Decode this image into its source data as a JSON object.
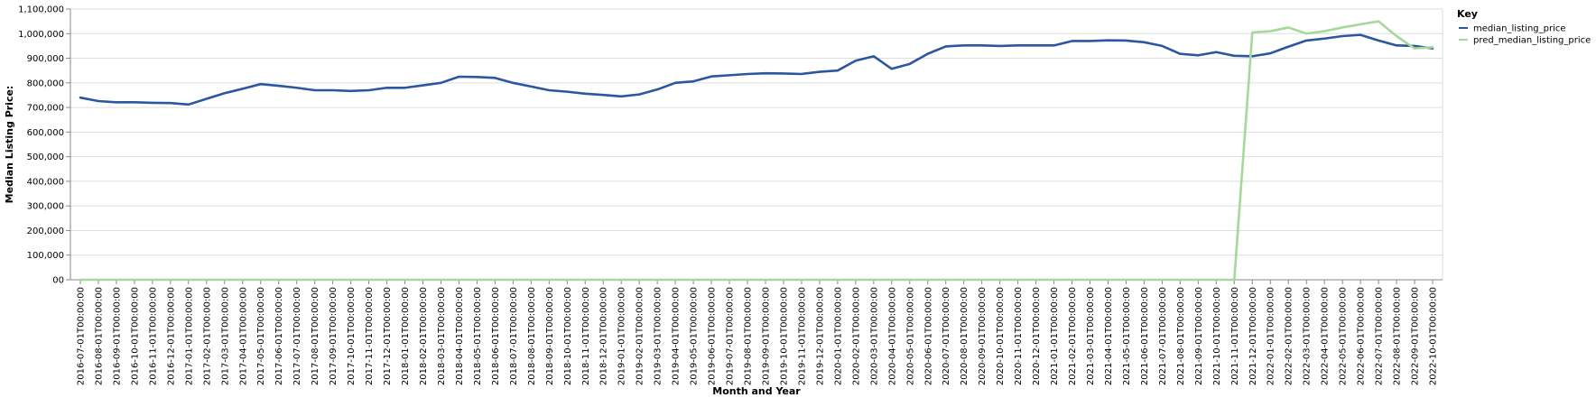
{
  "chart_data": {
    "type": "line",
    "xlabel": "Month and Year",
    "ylabel": "Median Listing Price:",
    "ylim": [
      0,
      1100000
    ],
    "y_ticks": [
      "00",
      "100,000",
      "200,000",
      "300,000",
      "400,000",
      "500,000",
      "600,000",
      "700,000",
      "800,000",
      "900,000",
      "1,000,000",
      "1,100,000"
    ],
    "grid": true,
    "legend_placement": "right",
    "legend_title": "Key",
    "x": [
      "2016-07-01T00:00:00",
      "2016-08-01T00:00:00",
      "2016-09-01T00:00:00",
      "2016-10-01T00:00:00",
      "2016-11-01T00:00:00",
      "2016-12-01T00:00:00",
      "2017-01-01T00:00:00",
      "2017-02-01T00:00:00",
      "2017-03-01T00:00:00",
      "2017-04-01T00:00:00",
      "2017-05-01T00:00:00",
      "2017-06-01T00:00:00",
      "2017-07-01T00:00:00",
      "2017-08-01T00:00:00",
      "2017-09-01T00:00:00",
      "2017-10-01T00:00:00",
      "2017-11-01T00:00:00",
      "2017-12-01T00:00:00",
      "2018-01-01T00:00:00",
      "2018-02-01T00:00:00",
      "2018-03-01T00:00:00",
      "2018-04-01T00:00:00",
      "2018-05-01T00:00:00",
      "2018-06-01T00:00:00",
      "2018-07-01T00:00:00",
      "2018-08-01T00:00:00",
      "2018-09-01T00:00:00",
      "2018-10-01T00:00:00",
      "2018-11-01T00:00:00",
      "2018-12-01T00:00:00",
      "2019-01-01T00:00:00",
      "2019-02-01T00:00:00",
      "2019-03-01T00:00:00",
      "2019-04-01T00:00:00",
      "2019-05-01T00:00:00",
      "2019-06-01T00:00:00",
      "2019-07-01T00:00:00",
      "2019-08-01T00:00:00",
      "2019-09-01T00:00:00",
      "2019-10-01T00:00:00",
      "2019-11-01T00:00:00",
      "2019-12-01T00:00:00",
      "2020-01-01T00:00:00",
      "2020-02-01T00:00:00",
      "2020-03-01T00:00:00",
      "2020-04-01T00:00:00",
      "2020-05-01T00:00:00",
      "2020-06-01T00:00:00",
      "2020-07-01T00:00:00",
      "2020-08-01T00:00:00",
      "2020-09-01T00:00:00",
      "2020-10-01T00:00:00",
      "2020-11-01T00:00:00",
      "2020-12-01T00:00:00",
      "2021-01-01T00:00:00",
      "2021-02-01T00:00:00",
      "2021-03-01T00:00:00",
      "2021-04-01T00:00:00",
      "2021-05-01T00:00:00",
      "2021-06-01T00:00:00",
      "2021-07-01T00:00:00",
      "2021-08-01T00:00:00",
      "2021-09-01T00:00:00",
      "2021-10-01T00:00:00",
      "2021-11-01T00:00:00",
      "2021-12-01T00:00:00",
      "2022-01-01T00:00:00",
      "2022-02-01T00:00:00",
      "2022-03-01T00:00:00",
      "2022-04-01T00:00:00",
      "2022-05-01T00:00:00",
      "2022-06-01T00:00:00",
      "2022-07-01T00:00:00",
      "2022-08-01T00:00:00",
      "2022-09-01T00:00:00",
      "2022-10-01T00:00:00"
    ],
    "series": [
      {
        "name": "median_listing_price",
        "color": "#2c56a0",
        "values": [
          740000,
          726000,
          721000,
          721000,
          719000,
          718000,
          712000,
          735000,
          758000,
          776000,
          795000,
          788000,
          780000,
          770000,
          770000,
          767000,
          770000,
          780000,
          780000,
          790000,
          800000,
          825000,
          824000,
          820000,
          800000,
          785000,
          770000,
          764000,
          756000,
          751000,
          745000,
          753000,
          773000,
          800000,
          806000,
          826000,
          831000,
          836000,
          839000,
          838000,
          836000,
          845000,
          850000,
          890000,
          908000,
          857000,
          877000,
          918000,
          948000,
          952000,
          952000,
          950000,
          952000,
          952000,
          952000,
          970000,
          970000,
          973000,
          972000,
          965000,
          950000,
          918000,
          912000,
          925000,
          910000,
          908000,
          920000,
          947000,
          972000,
          980000,
          990000,
          995000,
          972000,
          952000,
          950000,
          940000
        ]
      },
      {
        "name": "pred_median_listing_price",
        "color": "#a5d99a",
        "values": [
          0,
          0,
          0,
          0,
          0,
          0,
          0,
          0,
          0,
          0,
          0,
          0,
          0,
          0,
          0,
          0,
          0,
          0,
          0,
          0,
          0,
          0,
          0,
          0,
          0,
          0,
          0,
          0,
          0,
          0,
          0,
          0,
          0,
          0,
          0,
          0,
          0,
          0,
          0,
          0,
          0,
          0,
          0,
          0,
          0,
          0,
          0,
          0,
          0,
          0,
          0,
          0,
          0,
          0,
          0,
          0,
          0,
          0,
          0,
          0,
          0,
          0,
          0,
          0,
          0,
          1005000,
          1010000,
          1025000,
          1000000,
          1010000,
          1025000,
          1038000,
          1050000,
          990000,
          940000,
          945000
        ]
      }
    ]
  }
}
